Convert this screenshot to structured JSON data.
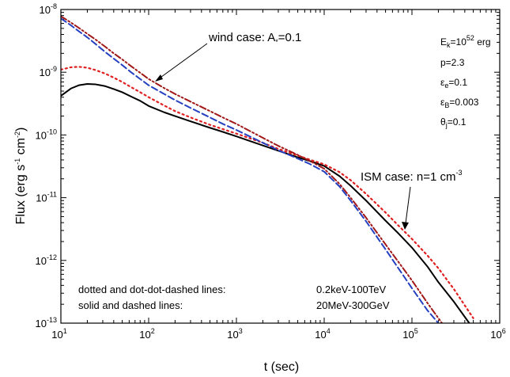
{
  "chart_data": {
    "type": "line",
    "xlabel": "t (sec)",
    "ylabel_parts": {
      "pre": "Flux (erg s",
      "exp1": "-1",
      "mid": " cm",
      "exp2": "-2",
      "post": ")"
    },
    "xscale": "log",
    "yscale": "log",
    "xlim": [
      10,
      1000000
    ],
    "ylim": [
      1e-13,
      1e-08
    ],
    "x_ticks": [
      {
        "value": 10,
        "base": "10",
        "exp": "1"
      },
      {
        "value": 100,
        "base": "10",
        "exp": "2"
      },
      {
        "value": 1000,
        "base": "10",
        "exp": "3"
      },
      {
        "value": 10000,
        "base": "10",
        "exp": "4"
      },
      {
        "value": 100000,
        "base": "10",
        "exp": "5"
      },
      {
        "value": 1000000,
        "base": "10",
        "exp": "6"
      }
    ],
    "y_ticks": [
      {
        "value": 1e-13,
        "base": "10",
        "exp": "-13"
      },
      {
        "value": 1e-12,
        "base": "10",
        "exp": "-12"
      },
      {
        "value": 1e-11,
        "base": "10",
        "exp": "-11"
      },
      {
        "value": 1e-10,
        "base": "10",
        "exp": "-10"
      },
      {
        "value": 1e-09,
        "base": "10",
        "exp": "-9"
      },
      {
        "value": 1e-08,
        "base": "10",
        "exp": "-8"
      }
    ],
    "series": [
      {
        "style": "solid",
        "color": "#000000",
        "x": [
          10,
          13,
          16,
          20,
          25,
          32,
          40,
          50,
          63,
          80,
          100,
          150,
          200,
          300,
          500,
          700,
          1000,
          2000,
          3000,
          5000,
          7000,
          10000,
          15000,
          20000,
          30000,
          50000,
          70000,
          100000,
          150000,
          200000,
          300000,
          450000
        ],
        "y": [
          4.2e-10,
          5.5e-10,
          6.2e-10,
          6.5e-10,
          6.4e-10,
          6e-10,
          5.4e-10,
          4.8e-10,
          4.1e-10,
          3.5e-10,
          2.9e-10,
          2.3e-10,
          2e-10,
          1.65e-10,
          1.3e-10,
          1.12e-10,
          9.5e-11,
          6.8e-11,
          5.6e-11,
          4.4e-11,
          3.8e-11,
          3.2e-11,
          2.2e-11,
          1.55e-11,
          9e-12,
          4.3e-12,
          2.7e-12,
          1.6e-12,
          8e-13,
          4.5e-13,
          2.2e-13,
          1e-13
        ]
      },
      {
        "style": "dotted",
        "color": "#e02020",
        "x": [
          10,
          13,
          16,
          20,
          25,
          32,
          40,
          50,
          63,
          80,
          100,
          150,
          200,
          300,
          500,
          700,
          1000,
          2000,
          3000,
          5000,
          7000,
          10000,
          15000,
          20000,
          30000,
          50000,
          70000,
          100000,
          150000,
          200000,
          300000,
          500000
        ],
        "y": [
          1.1e-09,
          1.2e-09,
          1.22e-09,
          1.18e-09,
          1.08e-09,
          9.5e-10,
          8.2e-10,
          7e-10,
          5.8e-10,
          4.8e-10,
          4e-10,
          2.95e-10,
          2.4e-10,
          1.9e-10,
          1.45e-10,
          1.24e-10,
          1.05e-10,
          7.5e-11,
          6e-11,
          4.7e-11,
          4e-11,
          3.4e-11,
          2.55e-11,
          1.9e-11,
          1.15e-11,
          5.8e-12,
          3.6e-12,
          2.2e-12,
          1.2e-12,
          7.5e-13,
          3.5e-13,
          1.2e-13
        ]
      },
      {
        "style": "dashed",
        "color": "#2540c0",
        "x": [
          10,
          13,
          16,
          20,
          25,
          32,
          40,
          50,
          63,
          80,
          100,
          150,
          200,
          300,
          500,
          700,
          1000,
          2000,
          3000,
          5000,
          7000,
          10000,
          15000,
          20000,
          30000,
          50000,
          70000,
          100000,
          150000,
          200000
        ],
        "y": [
          7.2e-09,
          5.6e-09,
          4.5e-09,
          3.6e-09,
          2.8e-09,
          2.1e-09,
          1.65e-09,
          1.3e-09,
          1e-09,
          7.8e-10,
          6.2e-10,
          4.5e-10,
          3.6e-10,
          2.7e-10,
          1.9e-10,
          1.5e-10,
          1.2e-10,
          7.5e-11,
          5.7e-11,
          4.2e-11,
          3.4e-11,
          2.6e-11,
          1.5e-11,
          9e-12,
          4.2e-12,
          1.5e-12,
          7.5e-13,
          3.6e-13,
          1.6e-13,
          1e-13
        ]
      },
      {
        "style": "dash-dot-dot",
        "color": "#a01818",
        "x": [
          10,
          13,
          16,
          20,
          25,
          32,
          40,
          50,
          63,
          80,
          100,
          150,
          200,
          300,
          500,
          700,
          1000,
          2000,
          3000,
          5000,
          7000,
          10000,
          15000,
          20000,
          30000,
          50000,
          70000,
          100000,
          150000,
          200000,
          220000
        ],
        "y": [
          7.8e-09,
          6.2e-09,
          5.1e-09,
          4.1e-09,
          3.3e-09,
          2.55e-09,
          2e-09,
          1.6e-09,
          1.25e-09,
          9.8e-10,
          7.8e-10,
          5.6e-10,
          4.5e-10,
          3.4e-10,
          2.4e-10,
          1.9e-10,
          1.5e-10,
          9e-11,
          6.7e-11,
          4.8e-11,
          3.8e-11,
          2.9e-11,
          1.65e-11,
          1e-11,
          4.8e-12,
          1.8e-12,
          9.5e-13,
          4.8e-13,
          2.1e-13,
          1.2e-13,
          1e-13
        ]
      }
    ],
    "annotations": {
      "wind": {
        "pre": "wind case: A",
        "sub": "*",
        "post": "=0.1"
      },
      "ism": {
        "pre": "ISM case: n=1 cm",
        "exp": "-3"
      },
      "params": [
        {
          "a": "E",
          "sub": "k",
          "b": "=10",
          "sup": "52",
          "c": " erg"
        },
        {
          "a": "p=2.3"
        },
        {
          "a": "ε",
          "sub": "e",
          "b": "=0.1"
        },
        {
          "a": "ε",
          "sub": "B",
          "b": "=0.003"
        },
        {
          "a": "θ",
          "sub": "j",
          "b": "=0.1"
        }
      ],
      "notes": [
        {
          "label": "dotted and dot-dot-dashed lines:",
          "range": "0.2keV-100TeV"
        },
        {
          "label": "solid and dashed lines:",
          "range": "20MeV-300GeV"
        }
      ]
    }
  }
}
